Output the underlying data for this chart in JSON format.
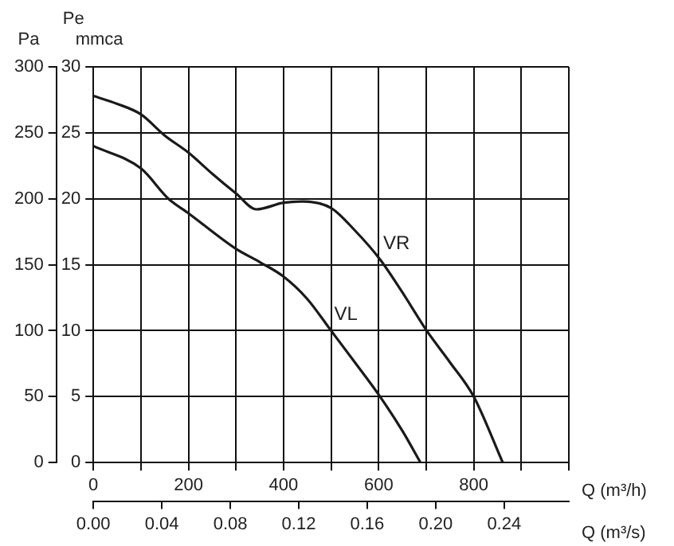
{
  "chart_data": {
    "type": "line",
    "xlabel": "Q (m³/h)",
    "x2label": "Q (m³/s)",
    "ylabel": "Pe mmca",
    "y2label": "Pa",
    "xlim": [
      0,
      1000
    ],
    "xticks": [
      0,
      {
        "value": 100,
        "label": null
      },
      200,
      {
        "value": 300,
        "label": null
      },
      400,
      {
        "value": 500,
        "label": null
      },
      600,
      {
        "value": 700,
        "label": null
      },
      800,
      {
        "value": 900,
        "label": null
      },
      {
        "value": 1000,
        "label": null
      }
    ],
    "x2lim": [
      0,
      0.2778
    ],
    "x2ticks": [
      {
        "value": 0,
        "label": "0.00"
      },
      0.04,
      0.08,
      0.12,
      0.16,
      {
        "value": 0.2,
        "label": "0.20"
      },
      0.24
    ],
    "ylim": [
      0,
      30
    ],
    "yticks": [
      0,
      5,
      10,
      15,
      20,
      25,
      30
    ],
    "y2lim": [
      0,
      300
    ],
    "y2ticks": [
      0,
      50,
      100,
      150,
      200,
      250,
      300
    ],
    "grid": true,
    "marker": "none",
    "line_style": "solid",
    "series": [
      {
        "name": "VR",
        "color": "#1a1a1a",
        "x": [
          0,
          50,
          100,
          150,
          200,
          250,
          300,
          343,
          400,
          440,
          500,
          550,
          603,
          650,
          701,
          750,
          800,
          861
        ],
        "values": [
          27.8,
          27.2,
          26.4,
          24.8,
          23.5,
          21.9,
          20.4,
          19.2,
          19.7,
          19.8,
          19.3,
          17.6,
          15.4,
          12.9,
          10,
          7.6,
          5,
          0
        ]
      },
      {
        "name": "VL",
        "color": "#1a1a1a",
        "x": [
          0,
          100,
          158,
          200,
          300,
          350,
          400,
          450,
          500,
          550,
          603,
          650,
          688
        ],
        "values": [
          24,
          22.3,
          20,
          18.9,
          16.2,
          15.2,
          14.1,
          12.4,
          10,
          7.6,
          5,
          2.4,
          0
        ]
      }
    ]
  }
}
